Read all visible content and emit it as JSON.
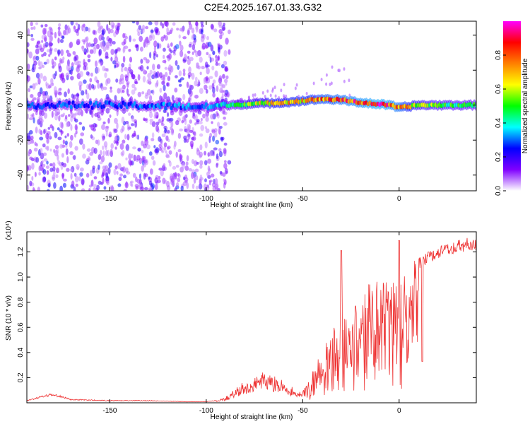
{
  "title": "C2E4.2025.167.01.33.G32",
  "chart_data": [
    {
      "type": "heatmap",
      "xlabel": "Height of straight line (km)",
      "ylabel": "Frequency (Hz)",
      "xlim": [
        -193,
        40
      ],
      "ylim": [
        -49,
        48
      ],
      "xticks": [
        "-150",
        "-100",
        "-50",
        "0"
      ],
      "yticks": [
        "-40",
        "-20",
        "0",
        "20",
        "40"
      ],
      "colorbar": {
        "label": "Normalized spectral amplitude",
        "range": [
          0.0,
          1.0
        ],
        "ticks": [
          "0.0",
          "0.2",
          "0.4",
          "0.6",
          "0.8"
        ],
        "colormap": [
          "#ffffff",
          "#8000ff",
          "#0000ff",
          "#00ffff",
          "#00ff00",
          "#ffff00",
          "#ff8000",
          "#ff0000",
          "#ff00ff"
        ]
      },
      "ridge": {
        "x": [
          -193,
          -150,
          -100,
          -90,
          -80,
          -70,
          -60,
          -50,
          -40,
          -30,
          -20,
          -10,
          -5,
          0,
          10,
          20,
          30,
          40
        ],
        "frequency": [
          0,
          0,
          -1,
          0,
          0.5,
          1,
          1.5,
          2.5,
          3.5,
          3,
          1.5,
          0.5,
          0,
          -1.5,
          0,
          0,
          0,
          0
        ],
        "amplitude": [
          0.3,
          0.3,
          0.35,
          0.4,
          0.55,
          0.65,
          0.7,
          0.75,
          0.8,
          0.85,
          0.9,
          0.95,
          0.9,
          0.85,
          0.6,
          0.55,
          0.5,
          0.5
        ]
      },
      "noise_region": {
        "x": [
          -193,
          -88
        ],
        "frequency": [
          -49,
          48
        ]
      }
    },
    {
      "type": "line",
      "xlabel": "Height of straight line (km)",
      "ylabel": "SNR (10 * v/v)",
      "multiplier_label": "(x10⁴)",
      "color": "#ee3333",
      "xlim": [
        -193,
        40
      ],
      "ylim": [
        0,
        1.36
      ],
      "xticks": [
        "-150",
        "-100",
        "-50",
        "0"
      ],
      "yticks": [
        "0.2",
        "0.4",
        "0.6",
        "0.8",
        "1.0",
        "1.2"
      ],
      "envelope": {
        "x": [
          -193,
          -180,
          -170,
          -150,
          -130,
          -110,
          -100,
          -95,
          -90,
          -85,
          -80,
          -75,
          -70,
          -65,
          -60,
          -55,
          -50,
          -45,
          -40,
          -35,
          -30,
          -25,
          -20,
          -15,
          -10,
          -5,
          0,
          5,
          10,
          15,
          20,
          25,
          30,
          35,
          40
        ],
        "y": [
          0.02,
          0.08,
          0.03,
          0.02,
          0.02,
          0.01,
          0.01,
          0.02,
          0.04,
          0.1,
          0.15,
          0.2,
          0.25,
          0.2,
          0.16,
          0.12,
          0.1,
          0.25,
          0.45,
          0.65,
          0.75,
          0.85,
          0.9,
          0.95,
          0.98,
          0.95,
          1.05,
          1.1,
          1.15,
          1.2,
          1.24,
          1.27,
          1.29,
          1.31,
          1.32
        ]
      }
    }
  ]
}
